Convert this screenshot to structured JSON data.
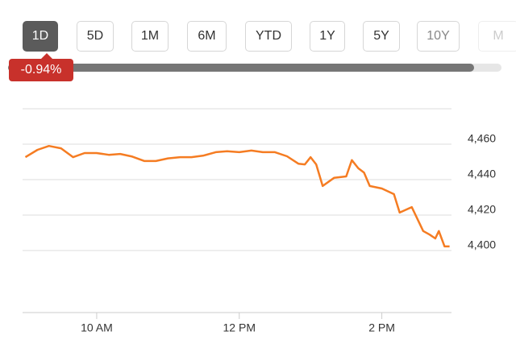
{
  "header": {
    "buttons": [
      "1D",
      "5D",
      "1M",
      "6M",
      "YTD",
      "1Y",
      "5Y",
      "10Y",
      "M"
    ],
    "change": "-0.94%"
  },
  "chart_data": {
    "type": "line",
    "x": [
      9.0,
      9.17,
      9.33,
      9.5,
      9.67,
      9.83,
      10.0,
      10.17,
      10.33,
      10.5,
      10.67,
      10.83,
      11.0,
      11.17,
      11.33,
      11.5,
      11.67,
      11.83,
      12.0,
      12.17,
      12.33,
      12.5,
      12.67,
      12.83,
      12.92,
      13.0,
      13.08,
      13.17,
      13.33,
      13.5,
      13.58,
      13.67,
      13.75,
      13.83,
      14.0,
      14.17,
      14.25,
      14.42,
      14.58,
      14.67,
      14.75,
      14.8,
      14.88,
      14.95
    ],
    "series": [
      {
        "name": "Price",
        "color": "#f57c22",
        "values": [
          4452.7,
          4456.8,
          4459,
          4457.7,
          4452.7,
          4455,
          4455,
          4454,
          4454.5,
          4453,
          4450.5,
          4450.5,
          4452,
          4452.7,
          4452.7,
          4453.6,
          4455.5,
          4456,
          4455.5,
          4456.4,
          4455.5,
          4455.5,
          4453.2,
          4449,
          4448.6,
          4452.7,
          4448.6,
          4436.4,
          4441,
          4441.8,
          4451,
          4446.4,
          4444,
          4436.4,
          4435,
          4431.8,
          4421.4,
          4424.5,
          4411,
          4409,
          4406.8,
          4411,
          4402.3,
          4402.3
        ]
      }
    ],
    "xlim": [
      9,
      15
    ],
    "xticks": [
      {
        "value": 10,
        "label": "10 AM"
      },
      {
        "value": 12,
        "label": "12 PM"
      },
      {
        "value": 14,
        "label": "2 PM"
      }
    ],
    "ylim": [
      4366,
      4480
    ],
    "yticks": [
      {
        "value": 4400,
        "label": "4,400"
      },
      {
        "value": 4420,
        "label": "4,420"
      },
      {
        "value": 4440,
        "label": "4,440"
      },
      {
        "value": 4460,
        "label": "4,460"
      }
    ],
    "grid": true
  }
}
